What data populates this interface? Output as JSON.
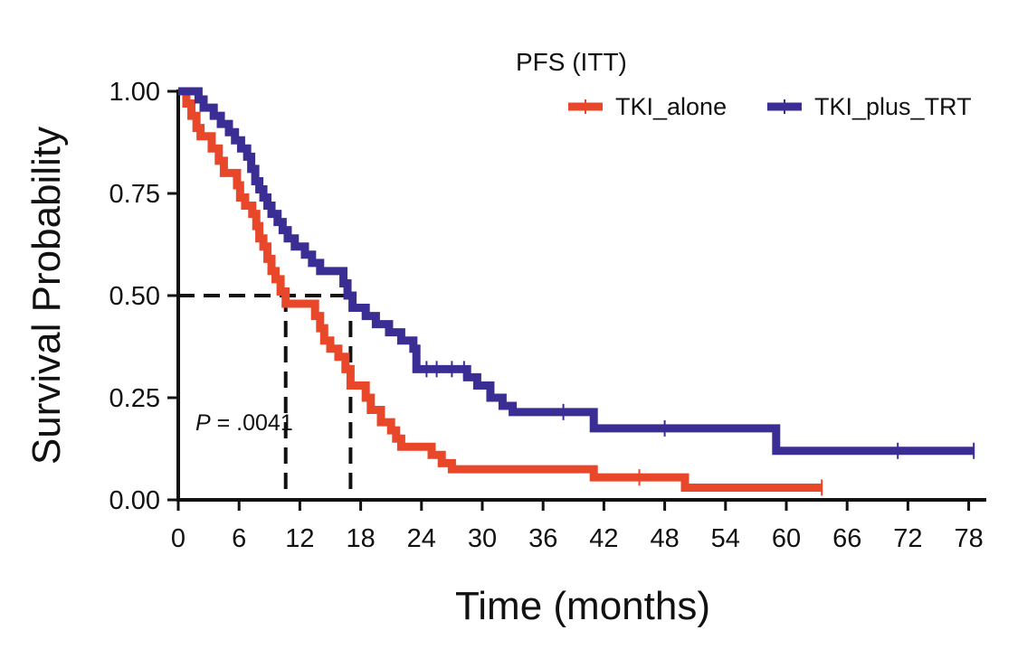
{
  "chart_data": {
    "type": "line",
    "subtype": "kaplan-meier step",
    "legend_title": "PFS (ITT)",
    "legend_position": "top-right",
    "xlabel": "Time (months)",
    "ylabel": "Survival Probability",
    "xlim": [
      0,
      79
    ],
    "ylim": [
      0,
      1
    ],
    "x_ticks": [
      "0",
      "6",
      "12",
      "18",
      "24",
      "30",
      "36",
      "42",
      "48",
      "54",
      "60",
      "66",
      "72",
      "78"
    ],
    "y_ticks": [
      "0.00",
      "0.25",
      "0.50",
      "0.75",
      "1.00"
    ],
    "annotation": {
      "p_label": "P",
      "p_value": " = .0041"
    },
    "median_reference": {
      "y": 0.5,
      "x": [
        10.6,
        17.0
      ]
    },
    "series": [
      {
        "name": "TKI_alone",
        "color": "#E8472A",
        "steps": [
          [
            0,
            1.0
          ],
          [
            0.8,
            0.97
          ],
          [
            1.3,
            0.94
          ],
          [
            1.8,
            0.91
          ],
          [
            2.2,
            0.89
          ],
          [
            3.3,
            0.86
          ],
          [
            4.0,
            0.83
          ],
          [
            4.5,
            0.8
          ],
          [
            5.8,
            0.77
          ],
          [
            6.1,
            0.74
          ],
          [
            6.6,
            0.72
          ],
          [
            7.3,
            0.7
          ],
          [
            7.7,
            0.67
          ],
          [
            8.0,
            0.64
          ],
          [
            8.4,
            0.62
          ],
          [
            8.8,
            0.59
          ],
          [
            9.2,
            0.56
          ],
          [
            9.6,
            0.54
          ],
          [
            10.1,
            0.51
          ],
          [
            10.6,
            0.48
          ],
          [
            13.5,
            0.45
          ],
          [
            14.0,
            0.42
          ],
          [
            14.4,
            0.39
          ],
          [
            15.0,
            0.37
          ],
          [
            15.8,
            0.35
          ],
          [
            16.5,
            0.32
          ],
          [
            17.0,
            0.28
          ],
          [
            18.5,
            0.25
          ],
          [
            19.0,
            0.22
          ],
          [
            20.0,
            0.19
          ],
          [
            21.0,
            0.17
          ],
          [
            21.5,
            0.15
          ],
          [
            22.0,
            0.13
          ],
          [
            25.0,
            0.11
          ],
          [
            26.0,
            0.09
          ],
          [
            27.0,
            0.075
          ],
          [
            41.0,
            0.055
          ],
          [
            50.0,
            0.03
          ],
          [
            63.5,
            0.03
          ]
        ],
        "censor_x": [
          45.5,
          63.5
        ]
      },
      {
        "name": "TKI_plus_TRT",
        "color": "#3A2E94",
        "steps": [
          [
            0,
            1.0
          ],
          [
            2.0,
            0.98
          ],
          [
            2.5,
            0.96
          ],
          [
            3.5,
            0.94
          ],
          [
            4.2,
            0.92
          ],
          [
            5.0,
            0.9
          ],
          [
            5.6,
            0.88
          ],
          [
            6.2,
            0.86
          ],
          [
            6.8,
            0.84
          ],
          [
            7.2,
            0.81
          ],
          [
            7.6,
            0.78
          ],
          [
            8.0,
            0.76
          ],
          [
            8.4,
            0.74
          ],
          [
            8.8,
            0.72
          ],
          [
            9.2,
            0.7
          ],
          [
            9.8,
            0.68
          ],
          [
            10.3,
            0.66
          ],
          [
            10.8,
            0.64
          ],
          [
            11.5,
            0.62
          ],
          [
            12.5,
            0.6
          ],
          [
            13.2,
            0.58
          ],
          [
            14.0,
            0.56
          ],
          [
            16.3,
            0.53
          ],
          [
            16.7,
            0.5
          ],
          [
            17.2,
            0.47
          ],
          [
            18.5,
            0.45
          ],
          [
            19.5,
            0.43
          ],
          [
            20.8,
            0.41
          ],
          [
            22.0,
            0.39
          ],
          [
            23.2,
            0.37
          ],
          [
            23.5,
            0.32
          ],
          [
            28.5,
            0.3
          ],
          [
            29.5,
            0.28
          ],
          [
            30.8,
            0.25
          ],
          [
            32.0,
            0.23
          ],
          [
            33.0,
            0.215
          ],
          [
            41.0,
            0.175
          ],
          [
            59.0,
            0.12
          ],
          [
            78.5,
            0.12
          ]
        ],
        "censor_x": [
          24.5,
          25.5,
          27.0,
          28.2,
          38.0,
          48.0,
          71.0,
          78.5
        ]
      }
    ]
  }
}
